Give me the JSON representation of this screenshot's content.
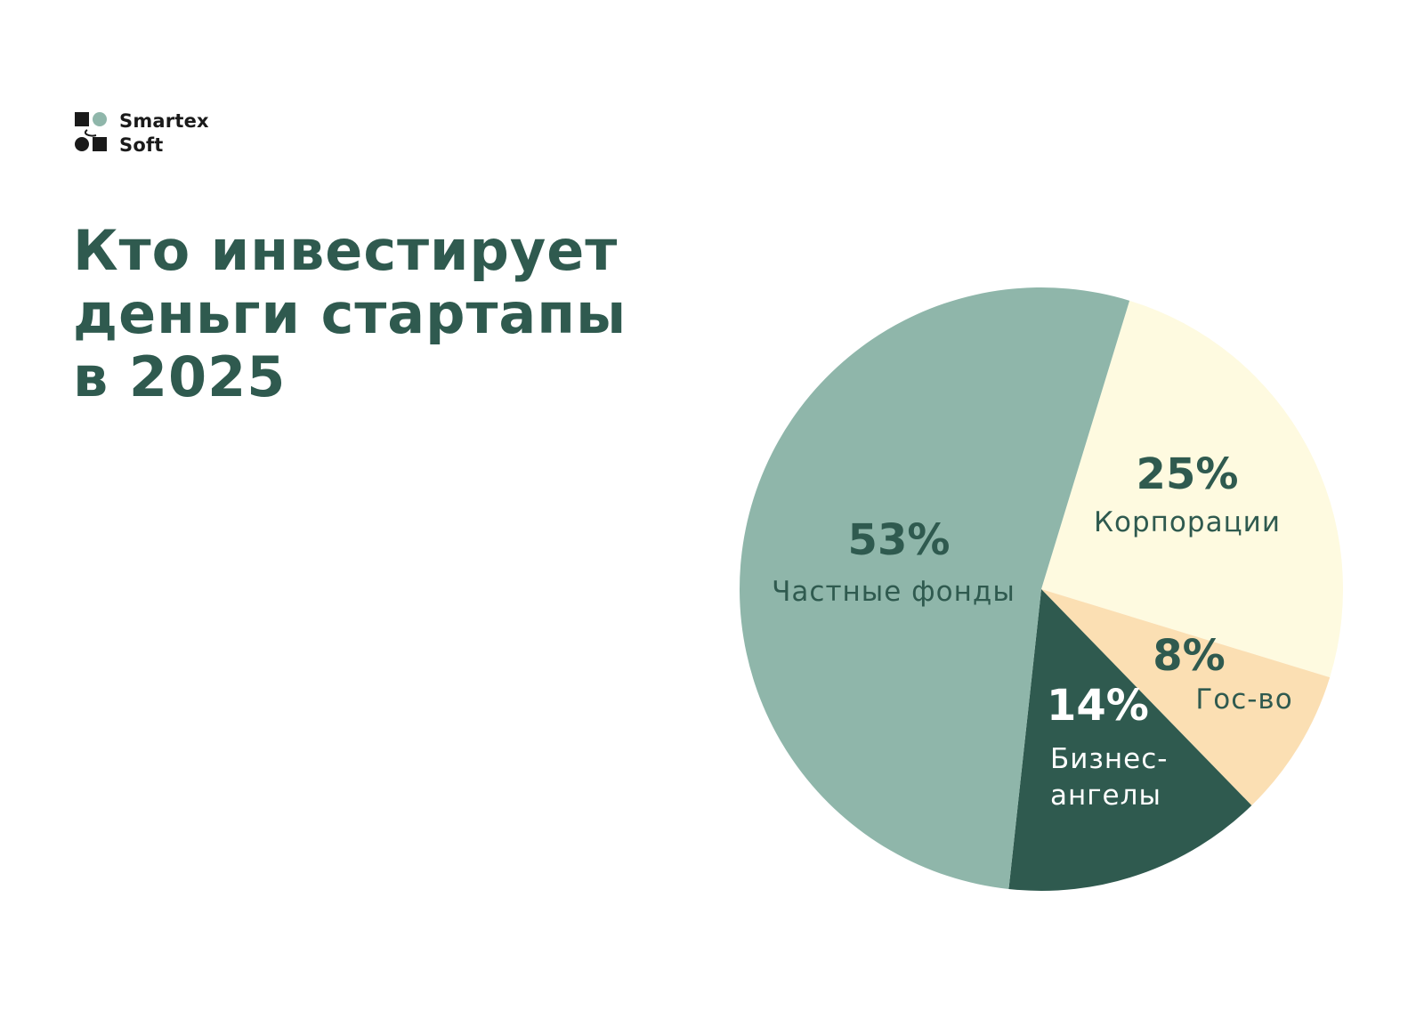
{
  "brand": {
    "line1": "Smartex",
    "line2": "Soft"
  },
  "title": {
    "line1": "Кто инвестирует",
    "line2": "деньги стартапы",
    "line3": "в 2025"
  },
  "colors": {
    "title": "#2f5a4f",
    "slice_private_funds": "#8fb6aa",
    "slice_corporations": "#fefae0",
    "slice_government": "#fbdfb3",
    "slice_business_angels": "#2f5a4f",
    "label_dark": "#2f5a4f",
    "label_light": "#ffffff"
  },
  "chart_data": {
    "type": "pie",
    "legend": "none",
    "slices": [
      {
        "label": "Корпорации",
        "value": 25,
        "value_label": "25%"
      },
      {
        "label": "Гос-во",
        "value": 8,
        "value_label": "8%"
      },
      {
        "label_lines": [
          "Бизнес-",
          "ангелы"
        ],
        "value": 14,
        "value_label": "14%"
      },
      {
        "label": "Частные фонды",
        "value": 53,
        "value_label": "53%"
      }
    ]
  }
}
